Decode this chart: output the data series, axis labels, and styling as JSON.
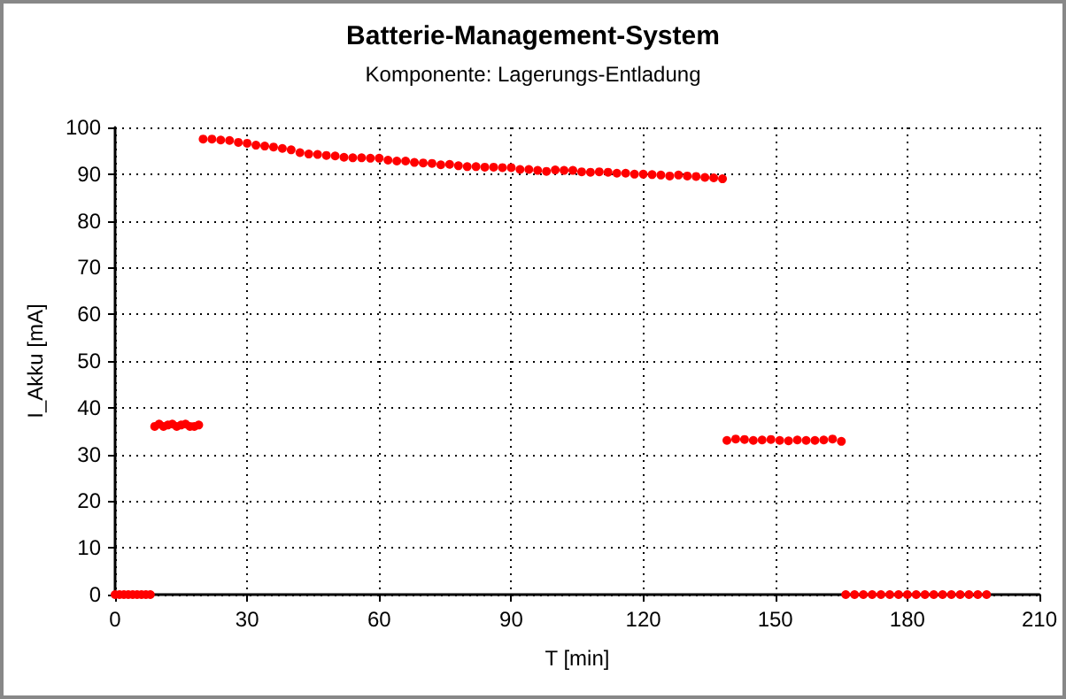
{
  "chart_data": {
    "type": "scatter",
    "title": "Batterie-Management-System",
    "subtitle": "Komponente: Lagerungs-Entladung",
    "xlabel": "T [min]",
    "ylabel": "I_Akku [mA]",
    "xlim": [
      0,
      210
    ],
    "xticks": [
      0,
      30,
      60,
      90,
      120,
      150,
      180,
      210
    ],
    "ylim": [
      0,
      100
    ],
    "yticks": [
      0,
      10,
      20,
      30,
      40,
      50,
      60,
      70,
      80,
      90,
      100
    ],
    "grid": true,
    "marker": "circle",
    "series": [
      {
        "color": "#ff0000",
        "x": [
          0,
          1,
          2,
          3,
          4,
          5,
          6,
          7,
          8,
          9,
          10,
          11,
          12,
          13,
          14,
          15,
          16,
          17,
          18,
          19,
          20,
          22,
          24,
          26,
          28,
          30,
          32,
          34,
          36,
          38,
          40,
          42,
          44,
          46,
          48,
          50,
          52,
          54,
          56,
          58,
          60,
          62,
          64,
          66,
          68,
          70,
          72,
          74,
          76,
          78,
          80,
          82,
          84,
          86,
          88,
          90,
          92,
          94,
          96,
          98,
          100,
          102,
          104,
          106,
          108,
          110,
          112,
          114,
          116,
          118,
          120,
          122,
          124,
          126,
          128,
          130,
          132,
          134,
          136,
          138,
          139,
          141,
          143,
          145,
          147,
          149,
          151,
          153,
          155,
          157,
          159,
          161,
          163,
          165,
          166,
          168,
          170,
          172,
          174,
          176,
          178,
          180,
          182,
          184,
          186,
          188,
          190,
          192,
          194,
          196,
          198
        ],
        "values": [
          0,
          0,
          0,
          0,
          0,
          0,
          0,
          0,
          0,
          36,
          36.5,
          36,
          36.3,
          36.5,
          36,
          36.3,
          36.5,
          36,
          36,
          36.3,
          97.5,
          97.5,
          97.3,
          97.2,
          96.8,
          96.6,
          96.2,
          96,
          95.8,
          95.5,
          95.2,
          94.6,
          94.3,
          94.2,
          94,
          93.9,
          93.6,
          93.5,
          93.5,
          93.4,
          93.4,
          93,
          92.8,
          92.8,
          92.5,
          92.4,
          92.3,
          92,
          92.1,
          91.8,
          91.6,
          91.6,
          91.5,
          91.5,
          91.4,
          91.4,
          91,
          91,
          90.8,
          90.6,
          90.9,
          90.8,
          90.8,
          90.5,
          90.4,
          90.5,
          90.4,
          90.2,
          90.2,
          90,
          90,
          89.9,
          89.8,
          89.6,
          89.8,
          89.6,
          89.5,
          89.3,
          89.2,
          89,
          33,
          33.3,
          33.2,
          33,
          33.1,
          33.2,
          33,
          32.9,
          33.1,
          33,
          33,
          33.1,
          33.3,
          32.8,
          0,
          0,
          0,
          0,
          0,
          0,
          0,
          0,
          0,
          0,
          0,
          0,
          0,
          0,
          0,
          0,
          0
        ]
      }
    ]
  }
}
